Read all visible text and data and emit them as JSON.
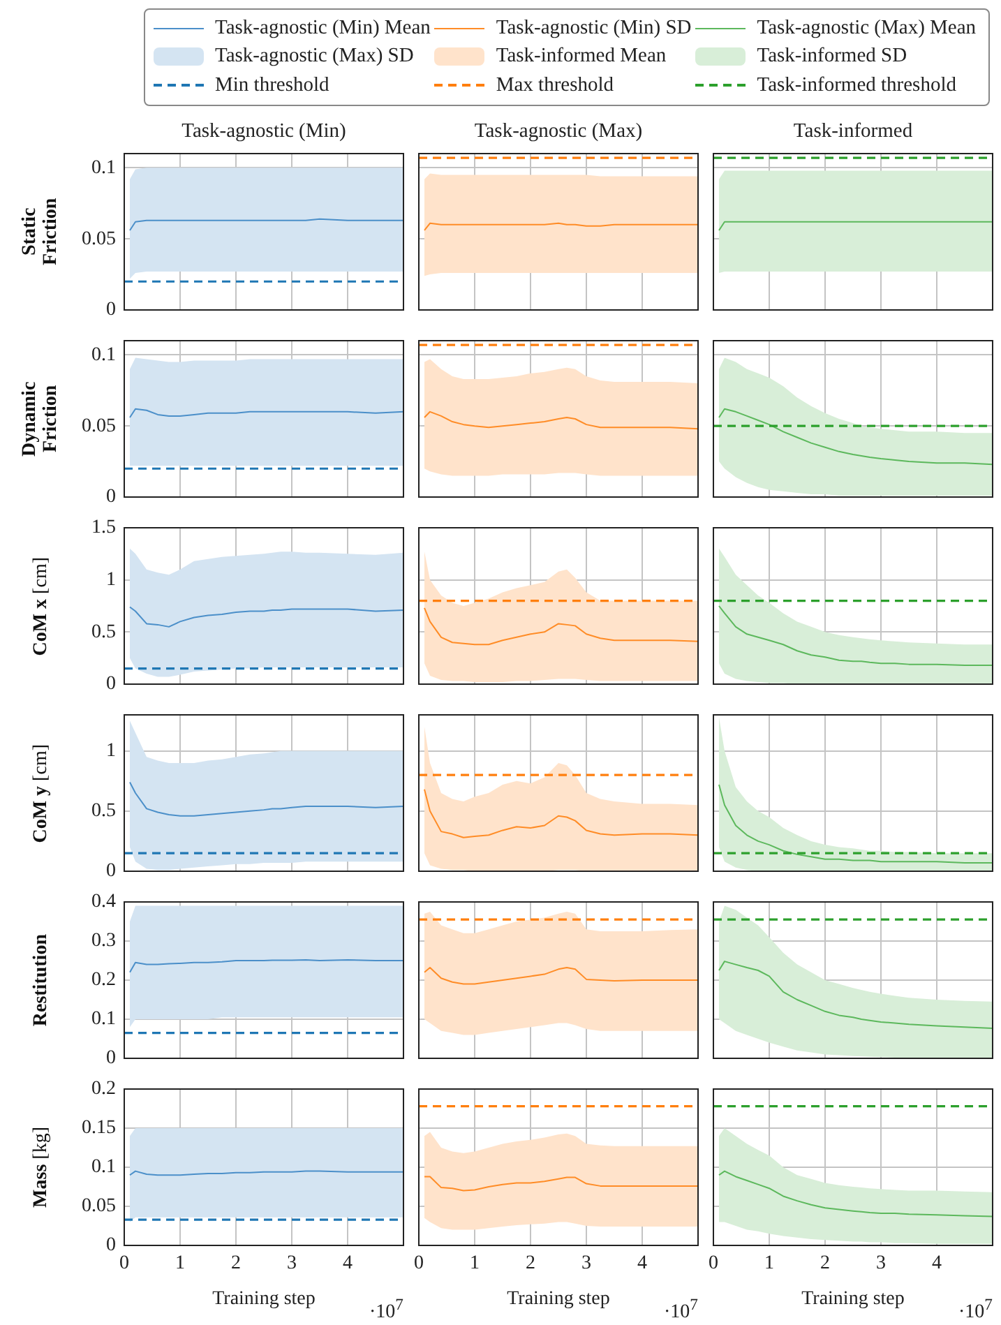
{
  "chart_data": [
    {
      "type": "line",
      "title": "Task-agnostic (Min)",
      "ylabel": "Static Friction",
      "annotations": [
        "Task-agnostic (Max) SD"
      ],
      "x": [
        0.1,
        0.2,
        0.4,
        0.6,
        0.8,
        1,
        1.25,
        1.5,
        1.75,
        2,
        2.25,
        2.5,
        2.65,
        2.8,
        3,
        3.25,
        3.5,
        4,
        4.5,
        5
      ],
      "xlim": [
        0,
        5
      ],
      "xticks": [
        0,
        1,
        2,
        3,
        4
      ],
      "ylim": [
        0,
        0.11
      ],
      "yticks": [
        0,
        0.05,
        0.1
      ],
      "grid": true,
      "tick_labels": "y",
      "legend": "top",
      "series": [
        {
          "name": "Task-agnostic (Min) Mean",
          "color": "#4b8fc9",
          "values": [
            0.056,
            0.062,
            0.063,
            0.063,
            0.063,
            0.063,
            0.063,
            0.063,
            0.063,
            0.063,
            0.063,
            0.063,
            0.063,
            0.063,
            0.063,
            0.063,
            0.064,
            0.063,
            0.063,
            0.063
          ],
          "lower": [
            0.022,
            0.026,
            0.027,
            0.027,
            0.027,
            0.027,
            0.027,
            0.027,
            0.027,
            0.027,
            0.027,
            0.027,
            0.027,
            0.027,
            0.027,
            0.027,
            0.027,
            0.027,
            0.027,
            0.027
          ],
          "upper": [
            0.092,
            0.099,
            0.1,
            0.1,
            0.1,
            0.1,
            0.1,
            0.1,
            0.1,
            0.1,
            0.1,
            0.1,
            0.1,
            0.1,
            0.1,
            0.1,
            0.1,
            0.1,
            0.1,
            0.1
          ]
        }
      ],
      "ref_lines": [
        {
          "axis": "y",
          "value": 0.02,
          "label": "Min threshold",
          "color": "#1f77b4",
          "line_style": "dashed"
        }
      ]
    },
    {
      "type": "line",
      "title": "Task-agnostic (Max)",
      "annotations": [
        "Task-informed Mean"
      ],
      "x": [
        0.1,
        0.2,
        0.4,
        0.6,
        0.8,
        1,
        1.25,
        1.5,
        1.75,
        2,
        2.25,
        2.5,
        2.65,
        2.8,
        3,
        3.25,
        3.5,
        4,
        4.5,
        5
      ],
      "xlim": [
        0,
        5
      ],
      "xticks": [
        0,
        1,
        2,
        3,
        4
      ],
      "ylim": [
        0,
        0.11
      ],
      "yticks": [
        0,
        0.05,
        0.1
      ],
      "grid": true,
      "tick_labels": false,
      "legend": "top",
      "series": [
        {
          "name": "Task-agnostic (Min) SD",
          "color": "#ff8c26",
          "values": [
            0.056,
            0.061,
            0.06,
            0.06,
            0.06,
            0.06,
            0.06,
            0.06,
            0.06,
            0.06,
            0.06,
            0.061,
            0.06,
            0.06,
            0.059,
            0.059,
            0.06,
            0.06,
            0.06,
            0.06
          ],
          "lower": [
            0.024,
            0.025,
            0.026,
            0.026,
            0.026,
            0.026,
            0.026,
            0.026,
            0.026,
            0.026,
            0.026,
            0.026,
            0.026,
            0.026,
            0.026,
            0.026,
            0.026,
            0.026,
            0.026,
            0.026
          ],
          "upper": [
            0.092,
            0.096,
            0.095,
            0.095,
            0.095,
            0.095,
            0.095,
            0.095,
            0.095,
            0.095,
            0.095,
            0.095,
            0.095,
            0.095,
            0.095,
            0.094,
            0.094,
            0.094,
            0.094,
            0.094
          ]
        }
      ],
      "ref_lines": [
        {
          "axis": "y",
          "value": 0.107,
          "label": "Max threshold",
          "color": "#ff7f0e",
          "line_style": "dashed"
        }
      ]
    },
    {
      "type": "line",
      "title": "Task-informed",
      "annotations": [
        "Task-informed SD"
      ],
      "x": [
        0.1,
        0.2,
        0.4,
        0.6,
        0.8,
        1,
        1.25,
        1.5,
        1.75,
        2,
        2.25,
        2.5,
        2.65,
        2.8,
        3,
        3.25,
        3.5,
        4,
        4.5,
        5
      ],
      "xlim": [
        0,
        5
      ],
      "xticks": [
        0,
        1,
        2,
        3,
        4
      ],
      "ylim": [
        0,
        0.11
      ],
      "yticks": [
        0,
        0.05,
        0.1
      ],
      "grid": true,
      "tick_labels": false,
      "legend": "top",
      "series": [
        {
          "name": "Task-agnostic (Max) Mean",
          "color": "#5cb85c",
          "values": [
            0.056,
            0.062,
            0.062,
            0.062,
            0.062,
            0.062,
            0.062,
            0.062,
            0.062,
            0.062,
            0.062,
            0.062,
            0.062,
            0.062,
            0.062,
            0.062,
            0.062,
            0.062,
            0.062,
            0.062
          ],
          "lower": [
            0.026,
            0.027,
            0.027,
            0.027,
            0.027,
            0.027,
            0.027,
            0.027,
            0.027,
            0.027,
            0.027,
            0.027,
            0.027,
            0.027,
            0.027,
            0.027,
            0.027,
            0.027,
            0.027,
            0.027
          ],
          "upper": [
            0.092,
            0.098,
            0.098,
            0.098,
            0.098,
            0.098,
            0.098,
            0.098,
            0.098,
            0.098,
            0.098,
            0.098,
            0.098,
            0.098,
            0.098,
            0.098,
            0.098,
            0.098,
            0.098,
            0.098
          ]
        }
      ],
      "ref_lines": [
        {
          "axis": "y",
          "value": 0.107,
          "label": "Task-informed threshold",
          "color": "#2ca02c",
          "line_style": "dashed"
        }
      ]
    },
    {
      "type": "line",
      "ylabel": "Dynamic Friction",
      "x": [
        0.1,
        0.2,
        0.4,
        0.6,
        0.8,
        1,
        1.25,
        1.5,
        1.75,
        2,
        2.25,
        2.5,
        2.65,
        2.8,
        3,
        3.25,
        3.5,
        4,
        4.5,
        5
      ],
      "xlim": [
        0,
        5
      ],
      "xticks": [
        0,
        1,
        2,
        3,
        4
      ],
      "ylim": [
        0,
        0.11
      ],
      "yticks": [
        0,
        0.05,
        0.1
      ],
      "grid": true,
      "tick_labels": "y",
      "series": [
        {
          "color": "#4b8fc9",
          "values": [
            0.056,
            0.062,
            0.061,
            0.058,
            0.057,
            0.057,
            0.058,
            0.059,
            0.059,
            0.059,
            0.06,
            0.06,
            0.06,
            0.06,
            0.06,
            0.06,
            0.06,
            0.06,
            0.059,
            0.06
          ],
          "lower": [
            0.022,
            0.022,
            0.022,
            0.022,
            0.022,
            0.022,
            0.022,
            0.022,
            0.022,
            0.022,
            0.022,
            0.022,
            0.022,
            0.022,
            0.022,
            0.022,
            0.022,
            0.022,
            0.022,
            0.022
          ],
          "upper": [
            0.09,
            0.098,
            0.097,
            0.096,
            0.095,
            0.095,
            0.096,
            0.096,
            0.096,
            0.096,
            0.097,
            0.097,
            0.097,
            0.097,
            0.097,
            0.097,
            0.097,
            0.097,
            0.097,
            0.097
          ]
        }
      ],
      "ref_lines": [
        {
          "axis": "y",
          "value": 0.02,
          "color": "#1f77b4",
          "line_style": "dashed"
        }
      ]
    },
    {
      "type": "line",
      "x": [
        0.1,
        0.2,
        0.4,
        0.6,
        0.8,
        1,
        1.25,
        1.5,
        1.75,
        2,
        2.25,
        2.5,
        2.65,
        2.8,
        3,
        3.25,
        3.5,
        4,
        4.5,
        5
      ],
      "xlim": [
        0,
        5
      ],
      "xticks": [
        0,
        1,
        2,
        3,
        4
      ],
      "ylim": [
        0,
        0.11
      ],
      "yticks": [
        0,
        0.05,
        0.1
      ],
      "grid": true,
      "tick_labels": false,
      "series": [
        {
          "color": "#ff8c26",
          "values": [
            0.056,
            0.06,
            0.057,
            0.053,
            0.051,
            0.05,
            0.049,
            0.05,
            0.051,
            0.052,
            0.053,
            0.055,
            0.056,
            0.055,
            0.051,
            0.049,
            0.049,
            0.049,
            0.049,
            0.048
          ],
          "lower": [
            0.02,
            0.018,
            0.016,
            0.015,
            0.015,
            0.015,
            0.015,
            0.016,
            0.016,
            0.016,
            0.016,
            0.017,
            0.017,
            0.017,
            0.016,
            0.015,
            0.015,
            0.015,
            0.015,
            0.015
          ],
          "upper": [
            0.095,
            0.097,
            0.09,
            0.085,
            0.083,
            0.083,
            0.083,
            0.084,
            0.085,
            0.087,
            0.088,
            0.09,
            0.091,
            0.09,
            0.085,
            0.082,
            0.081,
            0.081,
            0.081,
            0.08
          ]
        }
      ],
      "ref_lines": [
        {
          "axis": "y",
          "value": 0.107,
          "color": "#ff7f0e",
          "line_style": "dashed"
        }
      ]
    },
    {
      "type": "line",
      "x": [
        0.1,
        0.2,
        0.4,
        0.6,
        0.8,
        1,
        1.25,
        1.5,
        1.75,
        2,
        2.25,
        2.5,
        2.65,
        2.8,
        3,
        3.25,
        3.5,
        4,
        4.5,
        5
      ],
      "xlim": [
        0,
        5
      ],
      "xticks": [
        0,
        1,
        2,
        3,
        4
      ],
      "ylim": [
        0,
        0.11
      ],
      "yticks": [
        0,
        0.05,
        0.1
      ],
      "grid": true,
      "tick_labels": false,
      "series": [
        {
          "color": "#5cb85c",
          "values": [
            0.056,
            0.062,
            0.06,
            0.057,
            0.054,
            0.051,
            0.046,
            0.042,
            0.038,
            0.035,
            0.032,
            0.03,
            0.029,
            0.028,
            0.027,
            0.026,
            0.025,
            0.024,
            0.024,
            0.023
          ],
          "lower": [
            0.025,
            0.02,
            0.014,
            0.01,
            0.007,
            0.005,
            0.004,
            0.003,
            0.002,
            0.002,
            0.001,
            0.001,
            0.001,
            0.001,
            0.001,
            0.001,
            0.001,
            0.001,
            0.001,
            0.001
          ],
          "upper": [
            0.09,
            0.098,
            0.095,
            0.09,
            0.087,
            0.084,
            0.078,
            0.07,
            0.064,
            0.059,
            0.055,
            0.052,
            0.05,
            0.049,
            0.048,
            0.047,
            0.046,
            0.046,
            0.045,
            0.045
          ]
        }
      ],
      "ref_lines": [
        {
          "axis": "y",
          "value": 0.05,
          "color": "#2ca02c",
          "line_style": "dashed"
        }
      ]
    },
    {
      "type": "line",
      "ylabel": "CoM x [cm]",
      "x": [
        0.1,
        0.2,
        0.4,
        0.6,
        0.8,
        1,
        1.25,
        1.5,
        1.75,
        2,
        2.25,
        2.5,
        2.65,
        2.8,
        3,
        3.25,
        3.5,
        4,
        4.5,
        5
      ],
      "xlim": [
        0,
        5
      ],
      "xticks": [
        0,
        1,
        2,
        3,
        4
      ],
      "ylim": [
        0,
        1.5
      ],
      "yticks": [
        0,
        0.5,
        1,
        1.5
      ],
      "grid": true,
      "tick_labels": "y",
      "series": [
        {
          "color": "#4b8fc9",
          "values": [
            0.74,
            0.7,
            0.58,
            0.57,
            0.55,
            0.6,
            0.64,
            0.66,
            0.67,
            0.69,
            0.7,
            0.7,
            0.71,
            0.71,
            0.72,
            0.72,
            0.72,
            0.72,
            0.7,
            0.71
          ],
          "lower": [
            0.25,
            0.15,
            0.1,
            0.07,
            0.07,
            0.09,
            0.12,
            0.13,
            0.14,
            0.15,
            0.15,
            0.16,
            0.16,
            0.16,
            0.16,
            0.16,
            0.16,
            0.16,
            0.16,
            0.16
          ],
          "upper": [
            1.3,
            1.25,
            1.1,
            1.07,
            1.05,
            1.1,
            1.18,
            1.2,
            1.22,
            1.23,
            1.24,
            1.25,
            1.26,
            1.27,
            1.27,
            1.26,
            1.26,
            1.25,
            1.24,
            1.26
          ]
        }
      ],
      "ref_lines": [
        {
          "axis": "y",
          "value": 0.15,
          "color": "#1f77b4",
          "line_style": "dashed"
        }
      ]
    },
    {
      "type": "line",
      "x": [
        0.1,
        0.2,
        0.4,
        0.6,
        0.8,
        1,
        1.25,
        1.5,
        1.75,
        2,
        2.25,
        2.5,
        2.65,
        2.8,
        3,
        3.25,
        3.5,
        4,
        4.5,
        5
      ],
      "xlim": [
        0,
        5
      ],
      "xticks": [
        0,
        1,
        2,
        3,
        4
      ],
      "ylim": [
        0,
        1.5
      ],
      "yticks": [
        0,
        0.5,
        1,
        1.5
      ],
      "grid": true,
      "tick_labels": false,
      "series": [
        {
          "color": "#ff8c26",
          "values": [
            0.73,
            0.6,
            0.45,
            0.4,
            0.39,
            0.38,
            0.38,
            0.42,
            0.45,
            0.48,
            0.5,
            0.58,
            0.57,
            0.56,
            0.48,
            0.44,
            0.42,
            0.42,
            0.42,
            0.41
          ],
          "lower": [
            0.2,
            0.08,
            0.04,
            0.03,
            0.03,
            0.02,
            0.02,
            0.02,
            0.03,
            0.03,
            0.04,
            0.05,
            0.05,
            0.05,
            0.04,
            0.03,
            0.03,
            0.03,
            0.03,
            0.03
          ],
          "upper": [
            1.27,
            1.0,
            0.85,
            0.78,
            0.75,
            0.78,
            0.82,
            0.88,
            0.92,
            0.95,
            0.98,
            1.08,
            1.1,
            1.02,
            0.88,
            0.8,
            0.8,
            0.8,
            0.8,
            0.8
          ]
        }
      ],
      "ref_lines": [
        {
          "axis": "y",
          "value": 0.8,
          "color": "#ff7f0e",
          "line_style": "dashed"
        }
      ]
    },
    {
      "type": "line",
      "x": [
        0.1,
        0.2,
        0.4,
        0.6,
        0.8,
        1,
        1.25,
        1.5,
        1.75,
        2,
        2.25,
        2.5,
        2.65,
        2.8,
        3,
        3.25,
        3.5,
        4,
        4.5,
        5
      ],
      "xlim": [
        0,
        5
      ],
      "xticks": [
        0,
        1,
        2,
        3,
        4
      ],
      "ylim": [
        0,
        1.5
      ],
      "yticks": [
        0,
        0.5,
        1,
        1.5
      ],
      "grid": true,
      "tick_labels": false,
      "series": [
        {
          "color": "#5cb85c",
          "values": [
            0.75,
            0.68,
            0.55,
            0.48,
            0.45,
            0.42,
            0.38,
            0.32,
            0.28,
            0.26,
            0.23,
            0.22,
            0.22,
            0.21,
            0.2,
            0.2,
            0.19,
            0.19,
            0.18,
            0.18
          ],
          "lower": [
            0.2,
            0.1,
            0.05,
            0.03,
            0.02,
            0.01,
            0.01,
            0,
            0,
            0,
            0,
            0,
            0,
            0,
            0,
            0,
            0,
            0,
            0,
            0
          ],
          "upper": [
            1.3,
            1.22,
            1.05,
            0.95,
            0.85,
            0.78,
            0.68,
            0.6,
            0.55,
            0.5,
            0.47,
            0.45,
            0.44,
            0.43,
            0.42,
            0.41,
            0.4,
            0.39,
            0.38,
            0.38
          ]
        }
      ],
      "ref_lines": [
        {
          "axis": "y",
          "value": 0.8,
          "color": "#2ca02c",
          "line_style": "dashed"
        }
      ]
    },
    {
      "type": "line",
      "ylabel": "CoM y [cm]",
      "x": [
        0.1,
        0.2,
        0.4,
        0.6,
        0.8,
        1,
        1.25,
        1.5,
        1.75,
        2,
        2.25,
        2.5,
        2.65,
        2.8,
        3,
        3.25,
        3.5,
        4,
        4.5,
        5
      ],
      "xlim": [
        0,
        5
      ],
      "xticks": [
        0,
        1,
        2,
        3,
        4
      ],
      "ylim": [
        0,
        1.3
      ],
      "yticks": [
        0,
        0.5,
        1
      ],
      "grid": true,
      "tick_labels": "y",
      "series": [
        {
          "color": "#4b8fc9",
          "values": [
            0.74,
            0.65,
            0.52,
            0.49,
            0.47,
            0.46,
            0.46,
            0.47,
            0.48,
            0.49,
            0.5,
            0.51,
            0.52,
            0.52,
            0.53,
            0.54,
            0.54,
            0.54,
            0.53,
            0.54
          ],
          "lower": [
            0.2,
            0.08,
            0.02,
            0.01,
            0.01,
            0.02,
            0.03,
            0.04,
            0.05,
            0.06,
            0.06,
            0.07,
            0.07,
            0.07,
            0.07,
            0.08,
            0.08,
            0.08,
            0.08,
            0.08
          ],
          "upper": [
            1.25,
            1.15,
            0.95,
            0.92,
            0.9,
            0.9,
            0.9,
            0.92,
            0.93,
            0.95,
            0.97,
            0.98,
            0.99,
            1.0,
            1.0,
            1.0,
            1.0,
            1.0,
            1.0,
            1.0
          ]
        }
      ],
      "ref_lines": [
        {
          "axis": "y",
          "value": 0.15,
          "color": "#1f77b4",
          "line_style": "dashed"
        }
      ]
    },
    {
      "type": "line",
      "x": [
        0.1,
        0.2,
        0.4,
        0.6,
        0.8,
        1,
        1.25,
        1.5,
        1.75,
        2,
        2.25,
        2.5,
        2.65,
        2.8,
        3,
        3.25,
        3.5,
        4,
        4.5,
        5
      ],
      "xlim": [
        0,
        5
      ],
      "xticks": [
        0,
        1,
        2,
        3,
        4
      ],
      "ylim": [
        0,
        1.3
      ],
      "yticks": [
        0,
        0.5,
        1
      ],
      "grid": true,
      "tick_labels": false,
      "series": [
        {
          "color": "#ff8c26",
          "values": [
            0.68,
            0.5,
            0.33,
            0.31,
            0.28,
            0.29,
            0.3,
            0.34,
            0.37,
            0.36,
            0.38,
            0.46,
            0.45,
            0.42,
            0.34,
            0.31,
            0.3,
            0.31,
            0.31,
            0.3
          ],
          "lower": [
            0.15,
            0.05,
            0.02,
            0.01,
            0.01,
            0,
            0,
            0,
            0,
            0,
            0,
            0.01,
            0.01,
            0.01,
            0,
            0,
            0,
            0,
            0,
            0
          ],
          "upper": [
            1.2,
            0.9,
            0.65,
            0.6,
            0.58,
            0.62,
            0.65,
            0.72,
            0.75,
            0.73,
            0.78,
            0.9,
            0.88,
            0.8,
            0.65,
            0.6,
            0.58,
            0.56,
            0.56,
            0.55
          ]
        }
      ],
      "ref_lines": [
        {
          "axis": "y",
          "value": 0.8,
          "color": "#ff7f0e",
          "line_style": "dashed"
        }
      ]
    },
    {
      "type": "line",
      "x": [
        0.1,
        0.2,
        0.4,
        0.6,
        0.8,
        1,
        1.25,
        1.5,
        1.75,
        2,
        2.25,
        2.5,
        2.65,
        2.8,
        3,
        3.25,
        3.5,
        4,
        4.5,
        5
      ],
      "xlim": [
        0,
        5
      ],
      "xticks": [
        0,
        1,
        2,
        3,
        4
      ],
      "ylim": [
        0,
        1.3
      ],
      "yticks": [
        0,
        0.5,
        1
      ],
      "grid": true,
      "tick_labels": false,
      "series": [
        {
          "color": "#5cb85c",
          "values": [
            0.72,
            0.55,
            0.38,
            0.3,
            0.25,
            0.22,
            0.17,
            0.14,
            0.12,
            0.1,
            0.1,
            0.09,
            0.09,
            0.09,
            0.08,
            0.08,
            0.08,
            0.08,
            0.07,
            0.07
          ],
          "lower": [
            0.2,
            0.08,
            0.03,
            0.01,
            0,
            0,
            0,
            0,
            0,
            0,
            0,
            0,
            0,
            0,
            0,
            0,
            0,
            0,
            0,
            0
          ],
          "upper": [
            1.28,
            1.0,
            0.7,
            0.58,
            0.5,
            0.45,
            0.36,
            0.3,
            0.25,
            0.22,
            0.2,
            0.19,
            0.18,
            0.17,
            0.17,
            0.16,
            0.16,
            0.15,
            0.15,
            0.15
          ]
        }
      ],
      "ref_lines": [
        {
          "axis": "y",
          "value": 0.15,
          "color": "#2ca02c",
          "line_style": "dashed"
        }
      ]
    },
    {
      "type": "line",
      "ylabel": "Restitution",
      "x": [
        0.1,
        0.2,
        0.4,
        0.6,
        0.8,
        1,
        1.25,
        1.5,
        1.75,
        2,
        2.25,
        2.5,
        2.65,
        2.8,
        3,
        3.25,
        3.5,
        4,
        4.5,
        5
      ],
      "xlim": [
        0,
        5
      ],
      "xticks": [
        0,
        1,
        2,
        3,
        4
      ],
      "ylim": [
        0,
        0.4
      ],
      "yticks": [
        0,
        0.1,
        0.2,
        0.3,
        0.4
      ],
      "grid": true,
      "tick_labels": "y",
      "series": [
        {
          "color": "#4b8fc9",
          "values": [
            0.22,
            0.245,
            0.24,
            0.24,
            0.242,
            0.243,
            0.245,
            0.245,
            0.247,
            0.25,
            0.25,
            0.25,
            0.251,
            0.251,
            0.251,
            0.252,
            0.25,
            0.252,
            0.25,
            0.25
          ],
          "lower": [
            0.08,
            0.1,
            0.1,
            0.1,
            0.1,
            0.1,
            0.1,
            0.1,
            0.105,
            0.105,
            0.105,
            0.105,
            0.105,
            0.105,
            0.105,
            0.105,
            0.105,
            0.105,
            0.105,
            0.105
          ],
          "upper": [
            0.35,
            0.39,
            0.39,
            0.39,
            0.39,
            0.39,
            0.39,
            0.39,
            0.39,
            0.39,
            0.39,
            0.39,
            0.39,
            0.39,
            0.39,
            0.39,
            0.39,
            0.39,
            0.39,
            0.39
          ]
        }
      ],
      "ref_lines": [
        {
          "axis": "y",
          "value": 0.065,
          "color": "#1f77b4",
          "line_style": "dashed"
        }
      ]
    },
    {
      "type": "line",
      "x": [
        0.1,
        0.2,
        0.4,
        0.6,
        0.8,
        1,
        1.25,
        1.5,
        1.75,
        2,
        2.25,
        2.5,
        2.65,
        2.8,
        3,
        3.25,
        3.5,
        4,
        4.5,
        5
      ],
      "xlim": [
        0,
        5
      ],
      "xticks": [
        0,
        1,
        2,
        3,
        4
      ],
      "ylim": [
        0,
        0.4
      ],
      "yticks": [
        0,
        0.1,
        0.2,
        0.3,
        0.4
      ],
      "grid": true,
      "tick_labels": false,
      "series": [
        {
          "color": "#ff8c26",
          "values": [
            0.22,
            0.232,
            0.205,
            0.195,
            0.19,
            0.19,
            0.195,
            0.2,
            0.205,
            0.21,
            0.215,
            0.228,
            0.232,
            0.228,
            0.202,
            0.2,
            0.198,
            0.2,
            0.2,
            0.2
          ],
          "lower": [
            0.1,
            0.09,
            0.07,
            0.065,
            0.06,
            0.06,
            0.065,
            0.07,
            0.075,
            0.08,
            0.085,
            0.09,
            0.09,
            0.085,
            0.075,
            0.07,
            0.07,
            0.07,
            0.07,
            0.07
          ],
          "upper": [
            0.37,
            0.375,
            0.34,
            0.33,
            0.32,
            0.32,
            0.33,
            0.34,
            0.35,
            0.355,
            0.36,
            0.37,
            0.375,
            0.37,
            0.33,
            0.325,
            0.325,
            0.325,
            0.328,
            0.33
          ]
        }
      ],
      "ref_lines": [
        {
          "axis": "y",
          "value": 0.355,
          "color": "#ff7f0e",
          "line_style": "dashed"
        }
      ]
    },
    {
      "type": "line",
      "x": [
        0.1,
        0.2,
        0.4,
        0.6,
        0.8,
        1,
        1.25,
        1.5,
        1.75,
        2,
        2.25,
        2.5,
        2.65,
        2.8,
        3,
        3.25,
        3.5,
        4,
        4.5,
        5
      ],
      "xlim": [
        0,
        5
      ],
      "xticks": [
        0,
        1,
        2,
        3,
        4
      ],
      "ylim": [
        0,
        0.4
      ],
      "yticks": [
        0,
        0.1,
        0.2,
        0.3,
        0.4
      ],
      "grid": true,
      "tick_labels": false,
      "series": [
        {
          "color": "#5cb85c",
          "values": [
            0.225,
            0.248,
            0.24,
            0.232,
            0.225,
            0.21,
            0.17,
            0.15,
            0.135,
            0.12,
            0.11,
            0.105,
            0.1,
            0.097,
            0.093,
            0.09,
            0.087,
            0.083,
            0.08,
            0.077
          ],
          "lower": [
            0.1,
            0.09,
            0.07,
            0.06,
            0.05,
            0.04,
            0.03,
            0.02,
            0.015,
            0.01,
            0.008,
            0.006,
            0.005,
            0.004,
            0.003,
            0.002,
            0.002,
            0.001,
            0.001,
            0.001
          ],
          "upper": [
            0.35,
            0.39,
            0.38,
            0.36,
            0.34,
            0.31,
            0.27,
            0.24,
            0.22,
            0.2,
            0.19,
            0.18,
            0.175,
            0.17,
            0.165,
            0.16,
            0.155,
            0.15,
            0.147,
            0.145
          ]
        }
      ],
      "ref_lines": [
        {
          "axis": "y",
          "value": 0.355,
          "color": "#2ca02c",
          "line_style": "dashed"
        }
      ]
    },
    {
      "type": "line",
      "ylabel": "Mass [kg]",
      "xlabel": "Training step",
      "annotations": [
        "·10$^{7}$"
      ],
      "x": [
        0.1,
        0.2,
        0.4,
        0.6,
        0.8,
        1,
        1.25,
        1.5,
        1.75,
        2,
        2.25,
        2.5,
        2.65,
        2.8,
        3,
        3.25,
        3.5,
        4,
        4.5,
        5
      ],
      "xlim": [
        0,
        5
      ],
      "xticks": [
        0,
        1,
        2,
        3,
        4
      ],
      "ylim": [
        0,
        0.2
      ],
      "yticks": [
        0,
        0.05,
        0.1,
        0.15,
        0.2
      ],
      "grid": true,
      "series": [
        {
          "color": "#4b8fc9",
          "values": [
            0.09,
            0.095,
            0.091,
            0.09,
            0.09,
            0.09,
            0.091,
            0.092,
            0.092,
            0.093,
            0.093,
            0.094,
            0.094,
            0.094,
            0.094,
            0.095,
            0.095,
            0.094,
            0.094,
            0.094
          ],
          "lower": [
            0.03,
            0.036,
            0.036,
            0.036,
            0.036,
            0.036,
            0.036,
            0.036,
            0.036,
            0.036,
            0.036,
            0.036,
            0.036,
            0.036,
            0.036,
            0.036,
            0.036,
            0.036,
            0.036,
            0.036
          ],
          "upper": [
            0.14,
            0.15,
            0.15,
            0.15,
            0.15,
            0.15,
            0.15,
            0.15,
            0.15,
            0.15,
            0.15,
            0.15,
            0.15,
            0.15,
            0.15,
            0.15,
            0.15,
            0.15,
            0.15,
            0.15
          ]
        }
      ],
      "ref_lines": [
        {
          "axis": "y",
          "value": 0.033,
          "color": "#1f77b4",
          "line_style": "dashed"
        }
      ]
    },
    {
      "type": "line",
      "xlabel": "Training step",
      "annotations": [
        "·10$^{7}$"
      ],
      "x": [
        0.1,
        0.2,
        0.4,
        0.6,
        0.8,
        1,
        1.25,
        1.5,
        1.75,
        2,
        2.25,
        2.5,
        2.65,
        2.8,
        3,
        3.25,
        3.5,
        4,
        4.5,
        5
      ],
      "xlim": [
        0,
        5
      ],
      "xticks": [
        0,
        1,
        2,
        3,
        4
      ],
      "ylim": [
        0,
        0.2
      ],
      "yticks": [
        0,
        0.05,
        0.1,
        0.15,
        0.2
      ],
      "grid": true,
      "tick_labels": "x",
      "series": [
        {
          "color": "#ff8c26",
          "values": [
            0.088,
            0.088,
            0.074,
            0.073,
            0.07,
            0.071,
            0.075,
            0.078,
            0.08,
            0.08,
            0.082,
            0.085,
            0.087,
            0.087,
            0.079,
            0.076,
            0.076,
            0.076,
            0.076,
            0.076
          ],
          "lower": [
            0.035,
            0.03,
            0.022,
            0.02,
            0.02,
            0.02,
            0.022,
            0.024,
            0.026,
            0.027,
            0.028,
            0.03,
            0.03,
            0.028,
            0.025,
            0.024,
            0.024,
            0.024,
            0.024,
            0.024
          ],
          "upper": [
            0.14,
            0.145,
            0.125,
            0.12,
            0.118,
            0.12,
            0.125,
            0.13,
            0.133,
            0.135,
            0.138,
            0.142,
            0.143,
            0.14,
            0.13,
            0.128,
            0.127,
            0.127,
            0.127,
            0.127
          ]
        }
      ],
      "ref_lines": [
        {
          "axis": "y",
          "value": 0.178,
          "color": "#ff7f0e",
          "line_style": "dashed"
        }
      ]
    },
    {
      "type": "line",
      "xlabel": "Training step",
      "annotations": [
        "·10$^{7}$"
      ],
      "x": [
        0.1,
        0.2,
        0.4,
        0.6,
        0.8,
        1,
        1.25,
        1.5,
        1.75,
        2,
        2.25,
        2.5,
        2.65,
        2.8,
        3,
        3.25,
        3.5,
        4,
        4.5,
        5
      ],
      "xlim": [
        0,
        5
      ],
      "xticks": [
        0,
        1,
        2,
        3,
        4
      ],
      "ylim": [
        0,
        0.2
      ],
      "yticks": [
        0,
        0.05,
        0.1,
        0.15,
        0.2
      ],
      "grid": true,
      "tick_labels": "x",
      "series": [
        {
          "color": "#5cb85c",
          "values": [
            0.09,
            0.095,
            0.088,
            0.083,
            0.078,
            0.073,
            0.063,
            0.057,
            0.052,
            0.048,
            0.046,
            0.044,
            0.043,
            0.042,
            0.041,
            0.041,
            0.04,
            0.039,
            0.038,
            0.037
          ],
          "lower": [
            0.03,
            0.03,
            0.025,
            0.02,
            0.018,
            0.015,
            0.012,
            0.01,
            0.008,
            0.007,
            0.006,
            0.005,
            0.005,
            0.004,
            0.004,
            0.003,
            0.003,
            0.002,
            0.002,
            0.002
          ],
          "upper": [
            0.14,
            0.15,
            0.14,
            0.13,
            0.122,
            0.115,
            0.1,
            0.09,
            0.085,
            0.08,
            0.077,
            0.075,
            0.074,
            0.073,
            0.072,
            0.071,
            0.07,
            0.07,
            0.069,
            0.068
          ]
        }
      ],
      "ref_lines": [
        {
          "axis": "y",
          "value": 0.178,
          "color": "#2ca02c",
          "line_style": "dashed"
        }
      ]
    }
  ]
}
